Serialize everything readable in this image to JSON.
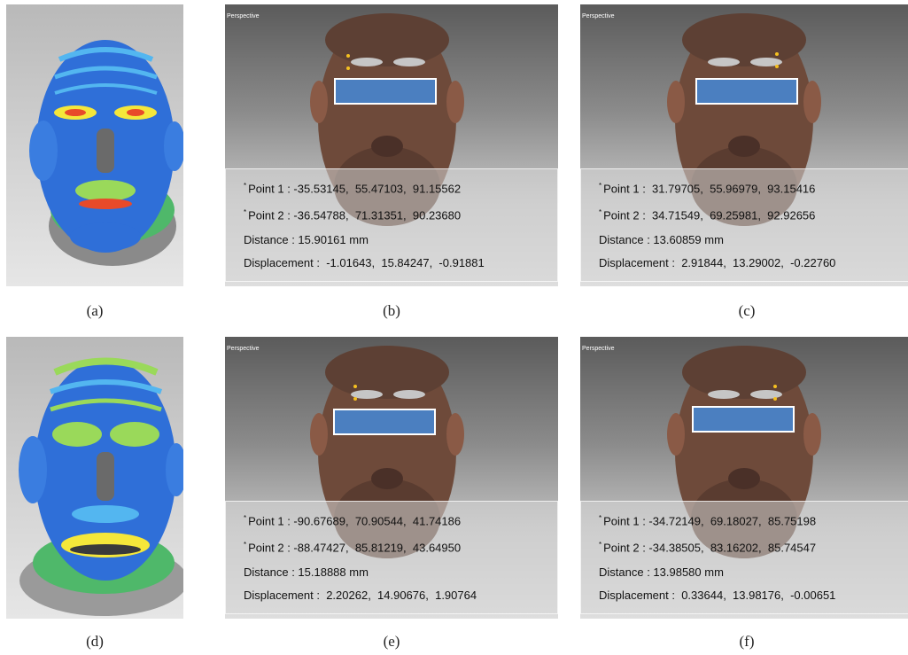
{
  "panels": [
    {
      "id": "a",
      "caption": "(a)",
      "type": "heatmap"
    },
    {
      "id": "b",
      "caption": "(b)",
      "type": "scan",
      "view_label": "Perspective",
      "point1": "Point 1 : -35.53145,  55.47103,  91.15562",
      "point2": "Point 2 : -36.54788,  71.31351,  90.23680",
      "distance": "Distance : 15.90161 mm",
      "displacement": "Displacement :  -1.01643,  15.84247,  -0.91881"
    },
    {
      "id": "c",
      "caption": "(c)",
      "type": "scan",
      "view_label": "Perspective",
      "point1": "Point 1 :  31.79705,  55.96979,  93.15416",
      "point2": "Point 2 :  34.71549,  69.25981,  92.92656",
      "distance": "Distance : 13.60859 mm",
      "displacement": "Displacement :  2.91844,  13.29002,  -0.22760"
    },
    {
      "id": "d",
      "caption": "(d)",
      "type": "heatmap"
    },
    {
      "id": "e",
      "caption": "(e)",
      "type": "scan",
      "view_label": "Perspective",
      "point1": "Point 1 : -90.67689,  70.90544,  41.74186",
      "point2": "Point 2 : -88.47427,  85.81219,  43.64950",
      "distance": "Distance : 15.18888 mm",
      "displacement": "Displacement :  2.20262,  14.90676,  1.90764"
    },
    {
      "id": "f",
      "caption": "(f)",
      "type": "scan",
      "view_label": "Perspective",
      "point1": "Point 1 : -34.72149,  69.18027,  85.75198",
      "point2": "Point 2 : -34.38505,  83.16202,  85.74547",
      "distance": "Distance : 13.98580 mm",
      "displacement": "Displacement :  0.33644,  13.98176,  -0.00651"
    }
  ],
  "colors": {
    "mask": "#4b7fc0",
    "heat_base": "#2f6fd8",
    "heat_high": "#f5e73a",
    "skin": "#6e4a3a"
  }
}
